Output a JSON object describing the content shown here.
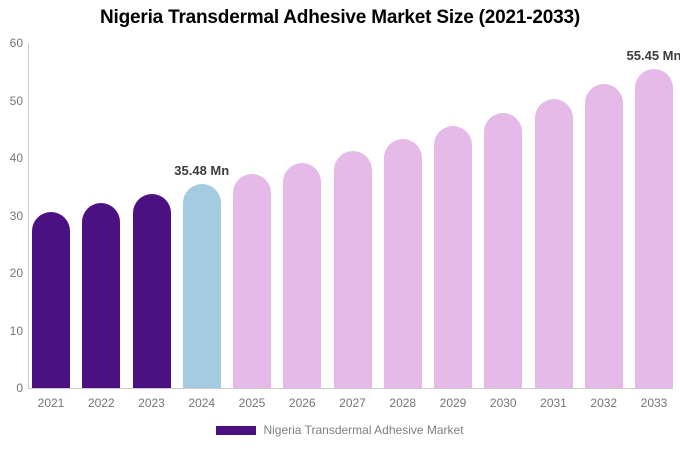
{
  "title": "Nigeria Transdermal Adhesive Market Size (2021-2033)",
  "legend": {
    "label": "Nigeria Transdermal Adhesive Market",
    "swatch_color": "#4B1182"
  },
  "colors": {
    "historical_bar": "#4B1182",
    "current_year_bar": "#A4CBE2",
    "forecast_bar": "#E5BAE8",
    "axis_line": "#CCCCCC",
    "axis_text": "#757575",
    "data_label_text": "#3C3C3C",
    "legend_text": "#7F7F7F",
    "title_text": "#000000",
    "background": "#FFFFFF"
  },
  "chart_data": {
    "type": "bar",
    "title": "Nigeria Transdermal Adhesive Market Size (2021-2033)",
    "xlabel": "",
    "ylabel": "",
    "unit": "Mn",
    "categories": [
      "2021",
      "2022",
      "2023",
      "2024",
      "2025",
      "2026",
      "2027",
      "2028",
      "2029",
      "2030",
      "2031",
      "2032",
      "2033"
    ],
    "values": [
      30.57,
      32.12,
      33.76,
      35.48,
      37.29,
      39.19,
      41.18,
      43.28,
      45.48,
      47.8,
      50.24,
      52.8,
      55.45
    ],
    "bar_colors": [
      "#4B1182",
      "#4B1182",
      "#4B1182",
      "#A4CBE2",
      "#E5BAE8",
      "#E5BAE8",
      "#E5BAE8",
      "#E5BAE8",
      "#E5BAE8",
      "#E5BAE8",
      "#E5BAE8",
      "#E5BAE8",
      "#E5BAE8"
    ],
    "data_labels": [
      {
        "category": "2024",
        "text": "35.48 Mn"
      },
      {
        "category": "2033",
        "text": "55.45 Mn"
      }
    ],
    "ylim": [
      0,
      60
    ],
    "yticks": [
      0,
      10,
      20,
      30,
      40,
      50,
      60
    ],
    "grid": false,
    "legend_position": "bottom",
    "legend_entries": [
      "Nigeria Transdermal Adhesive Market"
    ]
  }
}
